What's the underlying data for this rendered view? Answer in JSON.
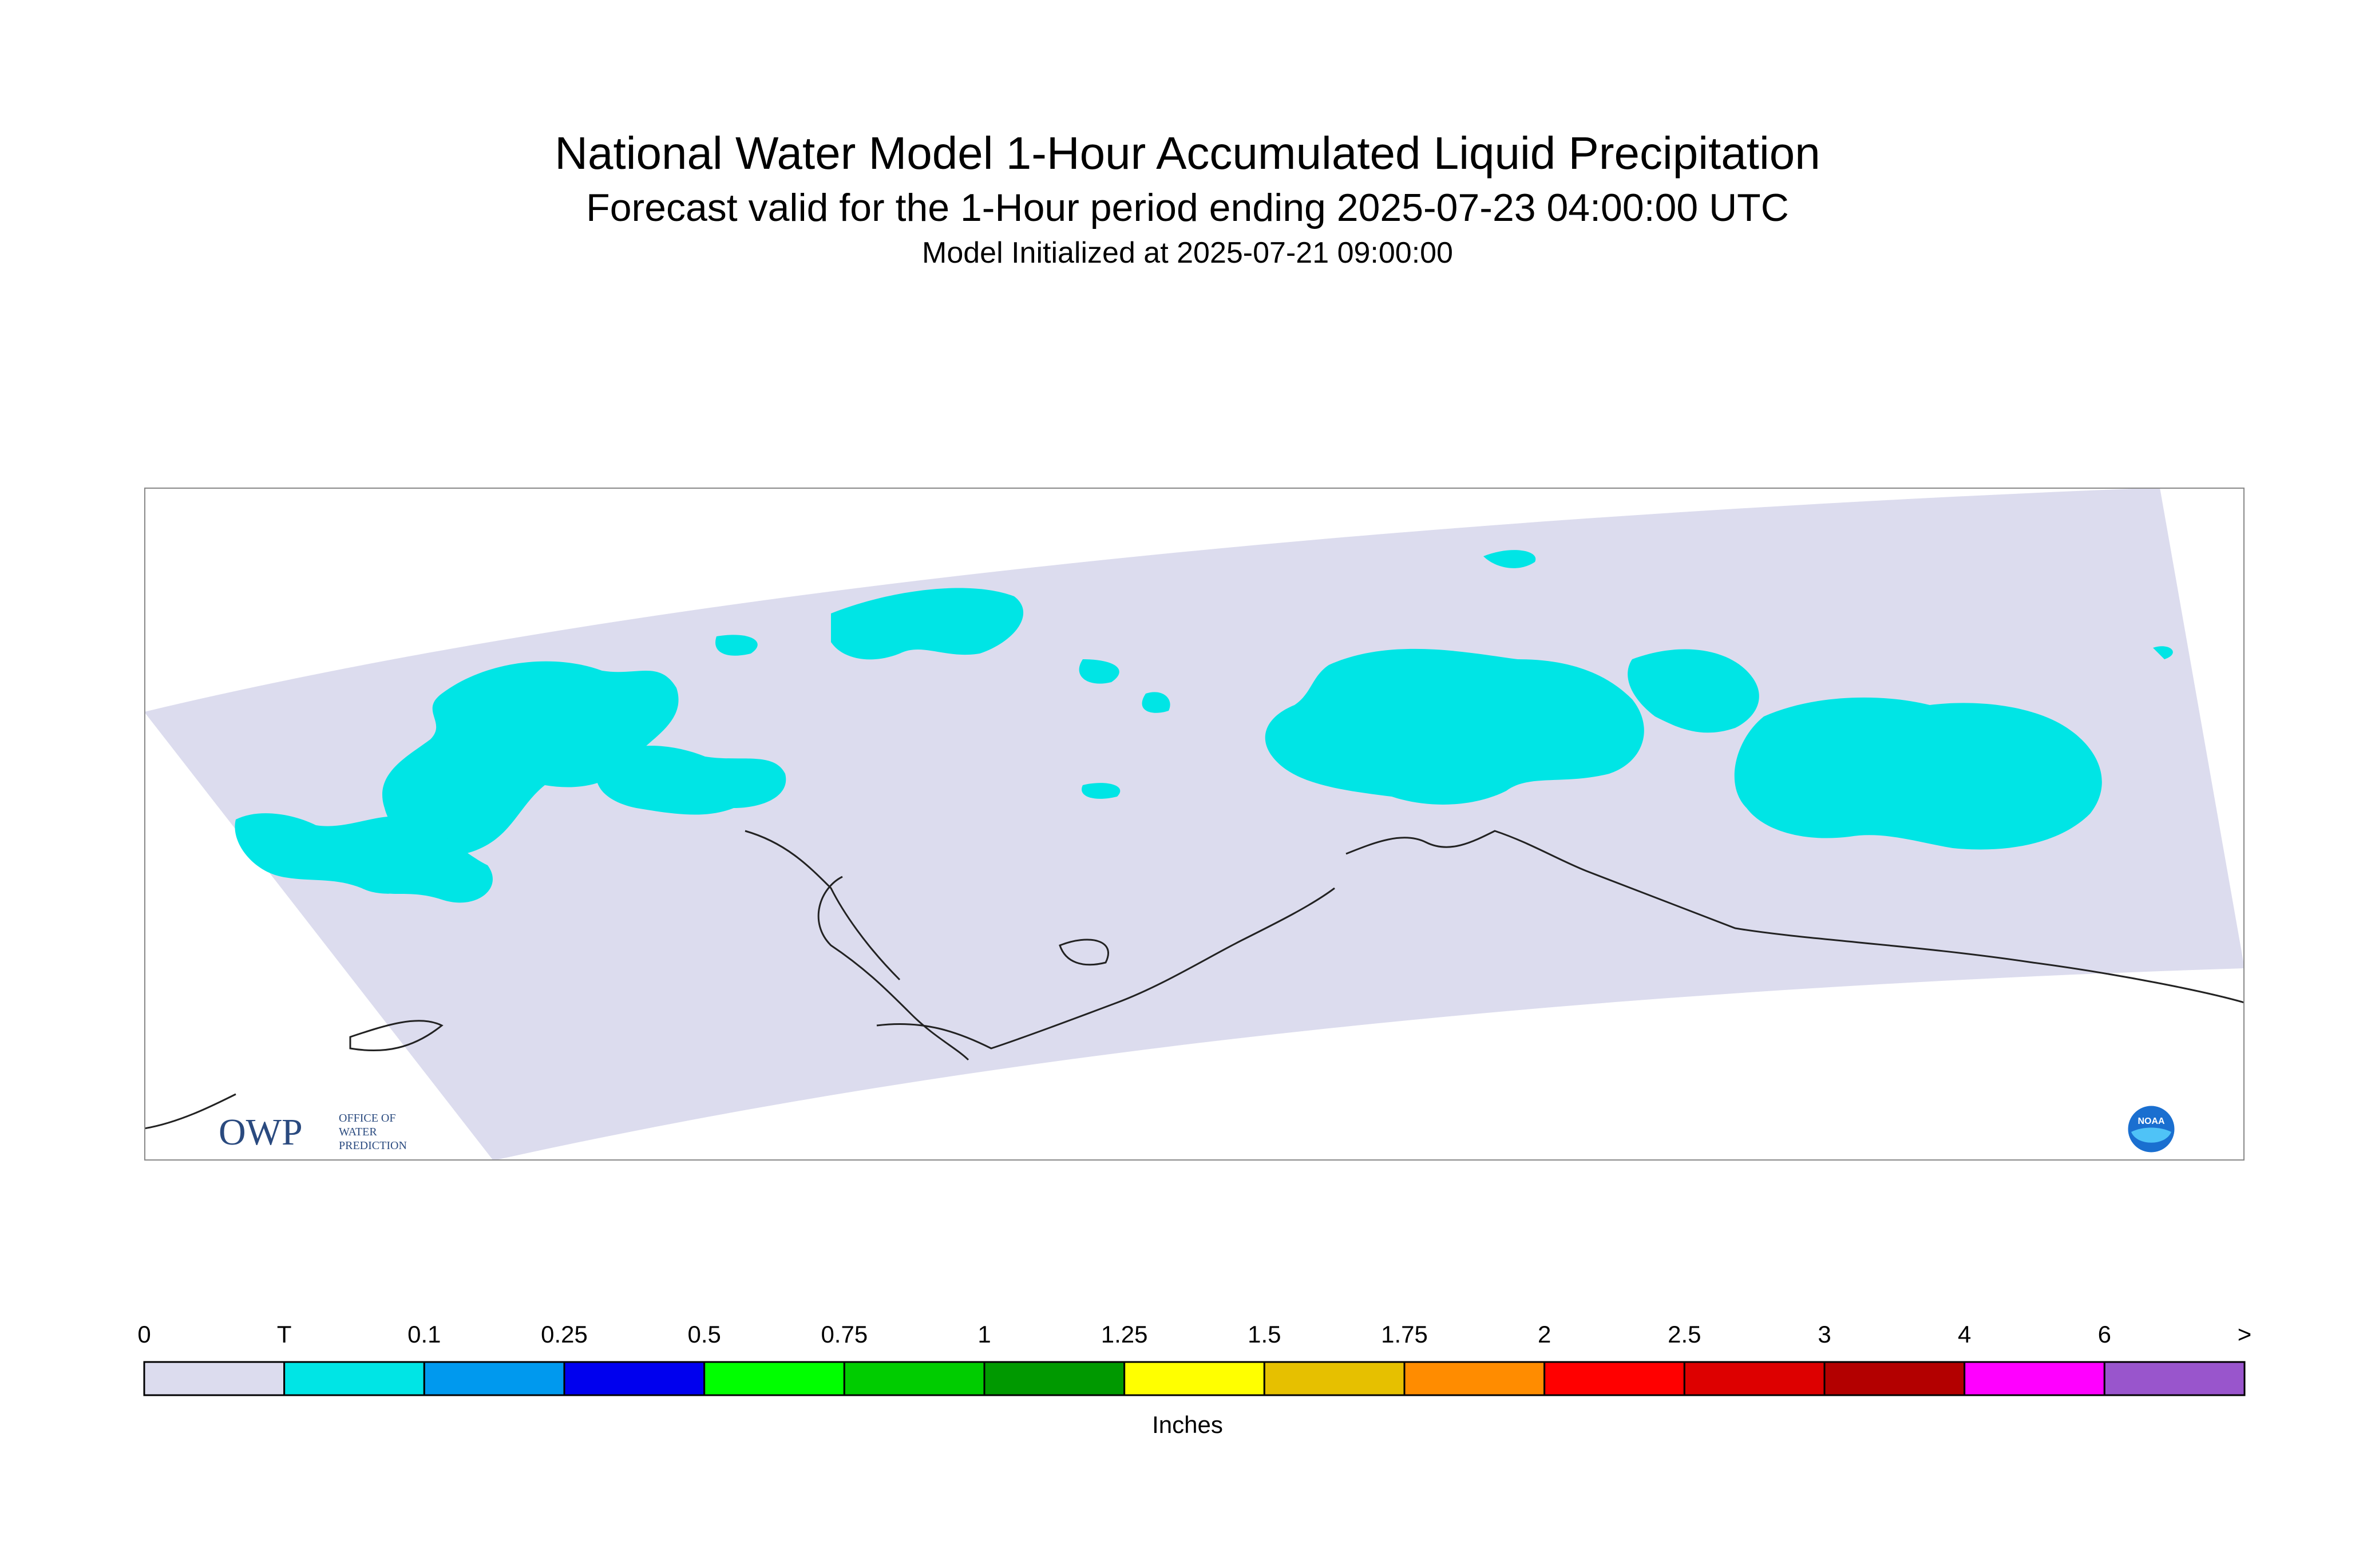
{
  "title": {
    "line1": "National Water Model 1-Hour Accumulated Liquid Precipitation",
    "line2": "Forecast valid for the 1-Hour period ending 2025-07-23 04:00:00 UTC",
    "line3": "Model Initialized at 2025-07-21 09:00:00"
  },
  "map": {
    "domain_fill": "#dcdcee",
    "precip_fill": "#00e5e5",
    "coastline_color": "#222222"
  },
  "logos": {
    "owp_letters": "OWP",
    "owp_lines": [
      "OFFICE OF",
      "WATER",
      "PREDICTION"
    ],
    "noaa": "NOAA"
  },
  "legend": {
    "units": "Inches",
    "labels": [
      "0",
      "T",
      "0.1",
      "0.25",
      "0.5",
      "0.75",
      "1",
      "1.25",
      "1.5",
      "1.75",
      "2",
      "2.5",
      "3",
      "4",
      "6",
      ">"
    ],
    "colors": [
      "#dcdcee",
      "#00e5e5",
      "#0099ee",
      "#0000ee",
      "#00ff00",
      "#00cc00",
      "#009900",
      "#ffff00",
      "#e6c000",
      "#ff8c00",
      "#ff0000",
      "#dd0000",
      "#b30000",
      "#ff00ff",
      "#9955cc"
    ]
  }
}
